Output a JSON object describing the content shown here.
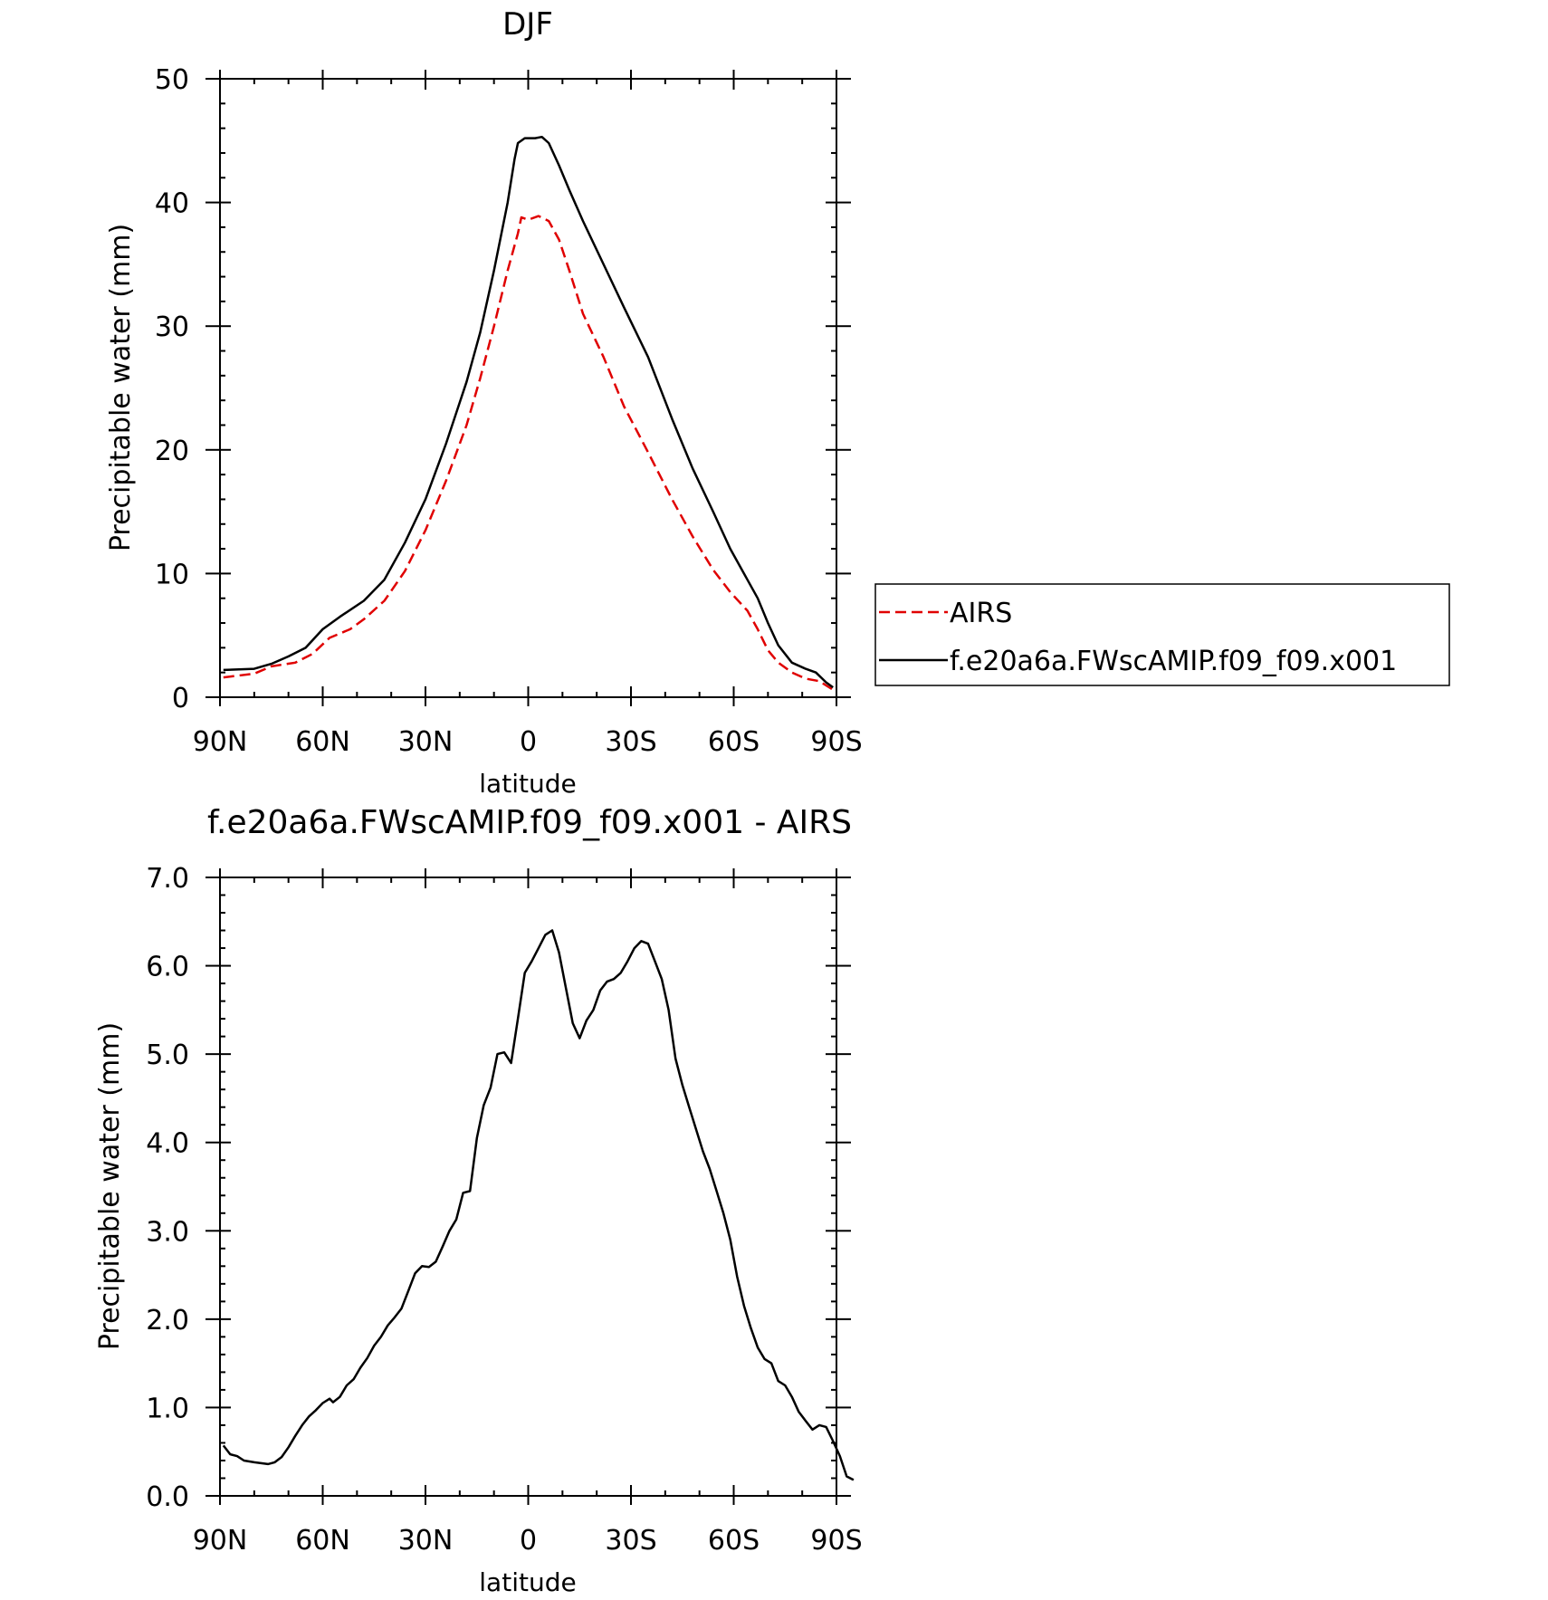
{
  "colors": {
    "model": "#000000",
    "obs": "#e00000",
    "axes": "#000000"
  },
  "chart_data": [
    {
      "type": "line",
      "title": "DJF",
      "xlabel": "latitude",
      "ylabel": "Precipitable water (mm)",
      "xlim": [
        90,
        -90
      ],
      "ylim": [
        0,
        50
      ],
      "x_ticks": [
        90,
        60,
        30,
        0,
        -30,
        -60,
        -90
      ],
      "x_tick_labels": [
        "90N",
        "60N",
        "30N",
        "0",
        "30S",
        "60S",
        "90S"
      ],
      "y_ticks": [
        0,
        10,
        20,
        30,
        40,
        50
      ],
      "y_tick_labels": [
        "0",
        "10",
        "20",
        "30",
        "40",
        "50"
      ],
      "legend_position": "right",
      "series": [
        {
          "name": "AIRS",
          "style": "dashed",
          "color": "#e00000",
          "points": [
            [
              89,
              1.6
            ],
            [
              80,
              1.9
            ],
            [
              75,
              2.5
            ],
            [
              68,
              2.8
            ],
            [
              63,
              3.5
            ],
            [
              58,
              4.8
            ],
            [
              52,
              5.5
            ],
            [
              48,
              6.3
            ],
            [
              42,
              7.8
            ],
            [
              36,
              10.2
            ],
            [
              30,
              13.5
            ],
            [
              24,
              17.5
            ],
            [
              18,
              22.0
            ],
            [
              14,
              25.8
            ],
            [
              10,
              30.0
            ],
            [
              6,
              34.5
            ],
            [
              3,
              37.5
            ],
            [
              2,
              38.8
            ],
            [
              0,
              38.6
            ],
            [
              -3,
              38.9
            ],
            [
              -6,
              38.5
            ],
            [
              -9,
              37.0
            ],
            [
              -12,
              34.5
            ],
            [
              -16,
              31.0
            ],
            [
              -22,
              27.5
            ],
            [
              -28,
              23.5
            ],
            [
              -35,
              19.8
            ],
            [
              -42,
              16.0
            ],
            [
              -48,
              13.0
            ],
            [
              -54,
              10.3
            ],
            [
              -59,
              8.5
            ],
            [
              -64,
              7.0
            ],
            [
              -67,
              5.5
            ],
            [
              -70,
              3.8
            ],
            [
              -73,
              2.8
            ],
            [
              -77,
              2.0
            ],
            [
              -81,
              1.5
            ],
            [
              -85,
              1.3
            ],
            [
              -89,
              0.6
            ]
          ]
        },
        {
          "name": "f.e20a6a.FWscAMIP.f09_f09.x001",
          "style": "solid",
          "color": "#000000",
          "points": [
            [
              89,
              2.2
            ],
            [
              80,
              2.3
            ],
            [
              75,
              2.7
            ],
            [
              70,
              3.3
            ],
            [
              65,
              4.0
            ],
            [
              60,
              5.5
            ],
            [
              55,
              6.5
            ],
            [
              48,
              7.8
            ],
            [
              42,
              9.5
            ],
            [
              36,
              12.5
            ],
            [
              30,
              16.0
            ],
            [
              24,
              20.5
            ],
            [
              18,
              25.5
            ],
            [
              14,
              29.5
            ],
            [
              10,
              34.5
            ],
            [
              6,
              40.0
            ],
            [
              4,
              43.5
            ],
            [
              3,
              44.8
            ],
            [
              1,
              45.2
            ],
            [
              -2,
              45.2
            ],
            [
              -4,
              45.3
            ],
            [
              -6,
              44.8
            ],
            [
              -9,
              43.0
            ],
            [
              -12,
              41.0
            ],
            [
              -16,
              38.5
            ],
            [
              -22,
              35.0
            ],
            [
              -28,
              31.5
            ],
            [
              -35,
              27.5
            ],
            [
              -42,
              22.5
            ],
            [
              -48,
              18.5
            ],
            [
              -54,
              15.0
            ],
            [
              -59,
              12.0
            ],
            [
              -64,
              9.5
            ],
            [
              -67,
              8.0
            ],
            [
              -70,
              6.0
            ],
            [
              -73,
              4.2
            ],
            [
              -77,
              2.8
            ],
            [
              -81,
              2.3
            ],
            [
              -84,
              2.0
            ],
            [
              -87,
              1.2
            ],
            [
              -89,
              0.8
            ]
          ]
        }
      ]
    },
    {
      "type": "line",
      "title": "f.e20a6a.FWscAMIP.f09_f09.x001 - AIRS",
      "xlabel": "latitude",
      "ylabel": "Precipitable water (mm)",
      "xlim": [
        90,
        -90
      ],
      "ylim": [
        0,
        7
      ],
      "x_ticks": [
        90,
        60,
        30,
        0,
        -30,
        -60,
        -90
      ],
      "x_tick_labels": [
        "90N",
        "60N",
        "30N",
        "0",
        "30S",
        "60S",
        "90S"
      ],
      "y_ticks": [
        0,
        1,
        2,
        3,
        4,
        5,
        6,
        7
      ],
      "y_tick_labels": [
        "0.0",
        "1.0",
        "2.0",
        "3.0",
        "4.0",
        "5.0",
        "6.0",
        "7.0"
      ],
      "series": [
        {
          "style": "solid",
          "color": "#000000",
          "points": [
            [
              89,
              0.57
            ],
            [
              87,
              0.47
            ],
            [
              85,
              0.45
            ],
            [
              83,
              0.4
            ],
            [
              80,
              0.38
            ],
            [
              78,
              0.37
            ],
            [
              76,
              0.36
            ],
            [
              74,
              0.38
            ],
            [
              72,
              0.44
            ],
            [
              70,
              0.55
            ],
            [
              68,
              0.68
            ],
            [
              66,
              0.8
            ],
            [
              64,
              0.9
            ],
            [
              62,
              0.97
            ],
            [
              60,
              1.05
            ],
            [
              58,
              1.1
            ],
            [
              57,
              1.06
            ],
            [
              55,
              1.12
            ],
            [
              53,
              1.25
            ],
            [
              51,
              1.32
            ],
            [
              49,
              1.45
            ],
            [
              47,
              1.56
            ],
            [
              45,
              1.7
            ],
            [
              43,
              1.8
            ],
            [
              41,
              1.93
            ],
            [
              39,
              2.02
            ],
            [
              37,
              2.12
            ],
            [
              35,
              2.32
            ],
            [
              33,
              2.52
            ],
            [
              31,
              2.6
            ],
            [
              29,
              2.59
            ],
            [
              27,
              2.65
            ],
            [
              25,
              2.82
            ],
            [
              23,
              3.0
            ],
            [
              21,
              3.13
            ],
            [
              19,
              3.43
            ],
            [
              17,
              3.45
            ],
            [
              15,
              4.05
            ],
            [
              13,
              4.42
            ],
            [
              11,
              4.62
            ],
            [
              9,
              5.0
            ],
            [
              7,
              5.02
            ],
            [
              5,
              4.9
            ],
            [
              3,
              5.4
            ],
            [
              1,
              5.92
            ],
            [
              -1,
              6.05
            ],
            [
              -3,
              6.2
            ],
            [
              -5,
              6.35
            ],
            [
              -7,
              6.4
            ],
            [
              -9,
              6.15
            ],
            [
              -11,
              5.75
            ],
            [
              -13,
              5.35
            ],
            [
              -15,
              5.18
            ],
            [
              -17,
              5.38
            ],
            [
              -19,
              5.5
            ],
            [
              -21,
              5.72
            ],
            [
              -23,
              5.82
            ],
            [
              -25,
              5.85
            ],
            [
              -27,
              5.92
            ],
            [
              -29,
              6.05
            ],
            [
              -31,
              6.2
            ],
            [
              -33,
              6.28
            ],
            [
              -35,
              6.25
            ],
            [
              -37,
              6.05
            ],
            [
              -39,
              5.85
            ],
            [
              -41,
              5.5
            ],
            [
              -43,
              4.95
            ],
            [
              -45,
              4.65
            ],
            [
              -47,
              4.4
            ],
            [
              -49,
              4.15
            ],
            [
              -51,
              3.9
            ],
            [
              -53,
              3.7
            ],
            [
              -55,
              3.45
            ],
            [
              -57,
              3.2
            ],
            [
              -59,
              2.9
            ],
            [
              -61,
              2.48
            ],
            [
              -63,
              2.15
            ],
            [
              -65,
              1.9
            ],
            [
              -67,
              1.68
            ],
            [
              -69,
              1.55
            ],
            [
              -71,
              1.5
            ],
            [
              -73,
              1.3
            ],
            [
              -75,
              1.25
            ],
            [
              -77,
              1.12
            ],
            [
              -79,
              0.95
            ],
            [
              -81,
              0.85
            ],
            [
              -83,
              0.75
            ],
            [
              -85,
              0.8
            ],
            [
              -87,
              0.78
            ],
            [
              -89,
              0.62
            ],
            [
              -91,
              0.45
            ],
            [
              -93,
              0.22
            ],
            [
              -95,
              0.18
            ]
          ]
        }
      ]
    }
  ]
}
